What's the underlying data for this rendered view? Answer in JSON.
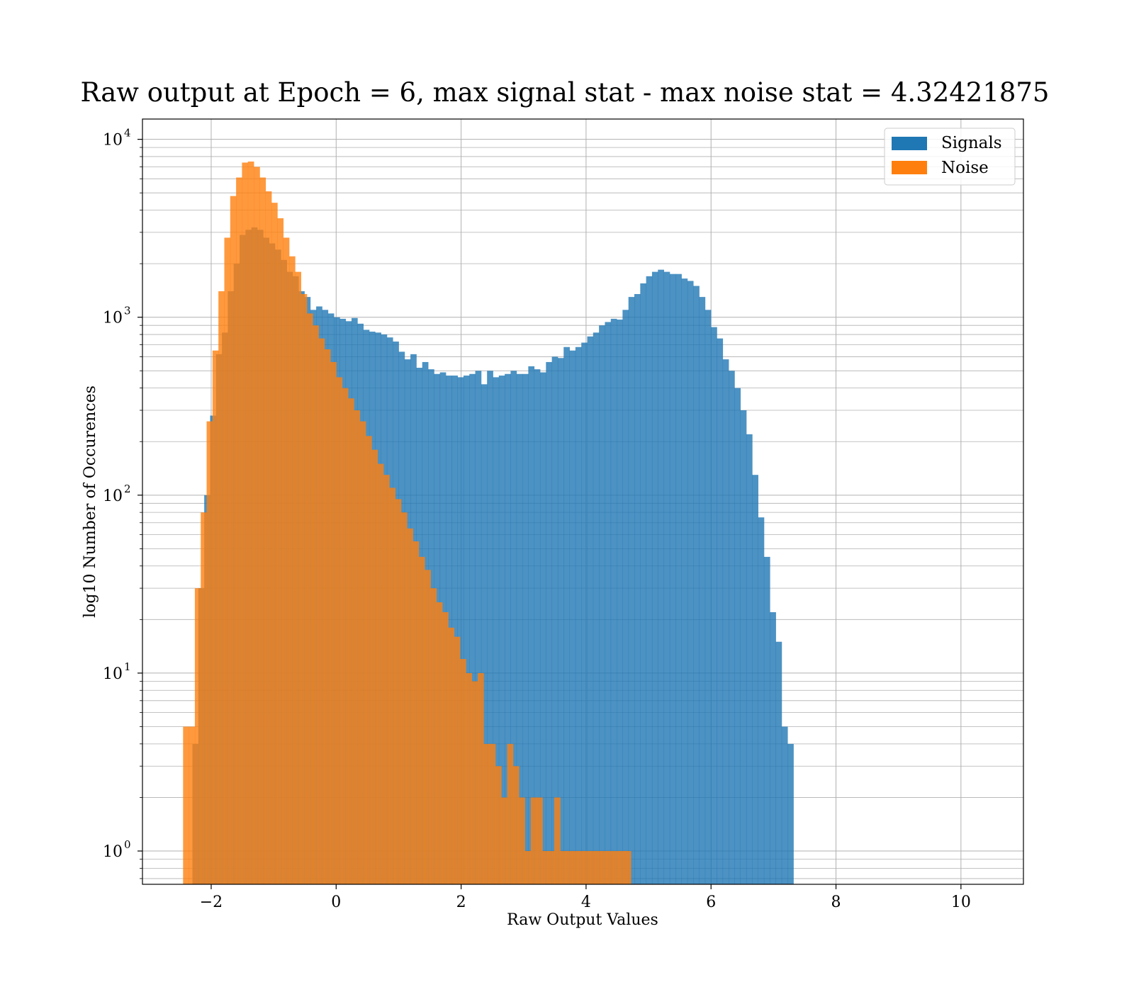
{
  "chart_data": {
    "type": "bar",
    "title": "Raw output at Epoch = 6, max signal stat - max noise stat = 4.32421875",
    "xlabel": "Raw Output Values",
    "ylabel": "log10 Number of Occurences",
    "xlim": [
      -3.1,
      11.0
    ],
    "ylim": [
      0.65,
      13000
    ],
    "yscale": "log",
    "grid": true,
    "legend_position": "top-right",
    "x_ticks": [
      -2,
      0,
      2,
      4,
      6,
      8,
      10
    ],
    "x_tick_labels": [
      "−2",
      "0",
      "2",
      "4",
      "6",
      "8",
      "10"
    ],
    "y_ticks": [
      1,
      10,
      100,
      1000,
      10000
    ],
    "y_tick_labels": [
      {
        "base": "10",
        "exp": "0"
      },
      {
        "base": "10",
        "exp": "1"
      },
      {
        "base": "10",
        "exp": "2"
      },
      {
        "base": "10",
        "exp": "3"
      },
      {
        "base": "10",
        "exp": "4"
      }
    ],
    "series": [
      {
        "name": "Signals",
        "color": "#1f77b4",
        "bin_start": -2.3,
        "bin_width": 0.0943,
        "values": [
          4,
          30,
          100,
          280,
          620,
          820,
          1400,
          2000,
          2900,
          3100,
          3200,
          3100,
          2800,
          2600,
          2400,
          2100,
          1800,
          1700,
          1400,
          1300,
          1100,
          1150,
          1100,
          1050,
          1000,
          980,
          950,
          990,
          920,
          850,
          830,
          820,
          800,
          770,
          730,
          640,
          580,
          620,
          520,
          560,
          510,
          480,
          490,
          470,
          470,
          460,
          470,
          480,
          500,
          420,
          500,
          460,
          470,
          480,
          500,
          480,
          480,
          530,
          510,
          490,
          560,
          600,
          590,
          680,
          650,
          680,
          720,
          780,
          820,
          900,
          940,
          980,
          970,
          1100,
          1300,
          1350,
          1550,
          1700,
          1800,
          1850,
          1800,
          1750,
          1750,
          1650,
          1600,
          1500,
          1300,
          1100,
          880,
          760,
          580,
          500,
          400,
          300,
          220,
          130,
          75,
          45,
          22,
          15,
          5,
          4
        ]
      },
      {
        "name": "Noise",
        "color": "#ff7f0e",
        "bin_start": -2.45,
        "bin_width": 0.0943,
        "values": [
          5,
          5,
          30,
          80,
          260,
          650,
          1400,
          2800,
          4800,
          6100,
          7400,
          7500,
          7000,
          6100,
          5100,
          4400,
          3600,
          2800,
          2200,
          1800,
          1350,
          1050,
          900,
          760,
          660,
          560,
          460,
          400,
          350,
          300,
          260,
          215,
          180,
          150,
          130,
          110,
          95,
          80,
          65,
          55,
          45,
          38,
          30,
          25,
          22,
          18,
          16,
          12,
          10,
          9,
          10,
          4,
          4,
          3,
          2,
          4,
          3,
          2,
          1,
          2,
          2,
          1,
          1,
          2,
          1,
          1,
          1,
          1,
          1,
          1,
          1,
          1,
          1,
          1,
          1,
          1
        ]
      }
    ]
  },
  "legend": {
    "items": [
      {
        "label": "Signals",
        "color": "#1f77b4"
      },
      {
        "label": "Noise",
        "color": "#ff7f0e"
      }
    ]
  }
}
